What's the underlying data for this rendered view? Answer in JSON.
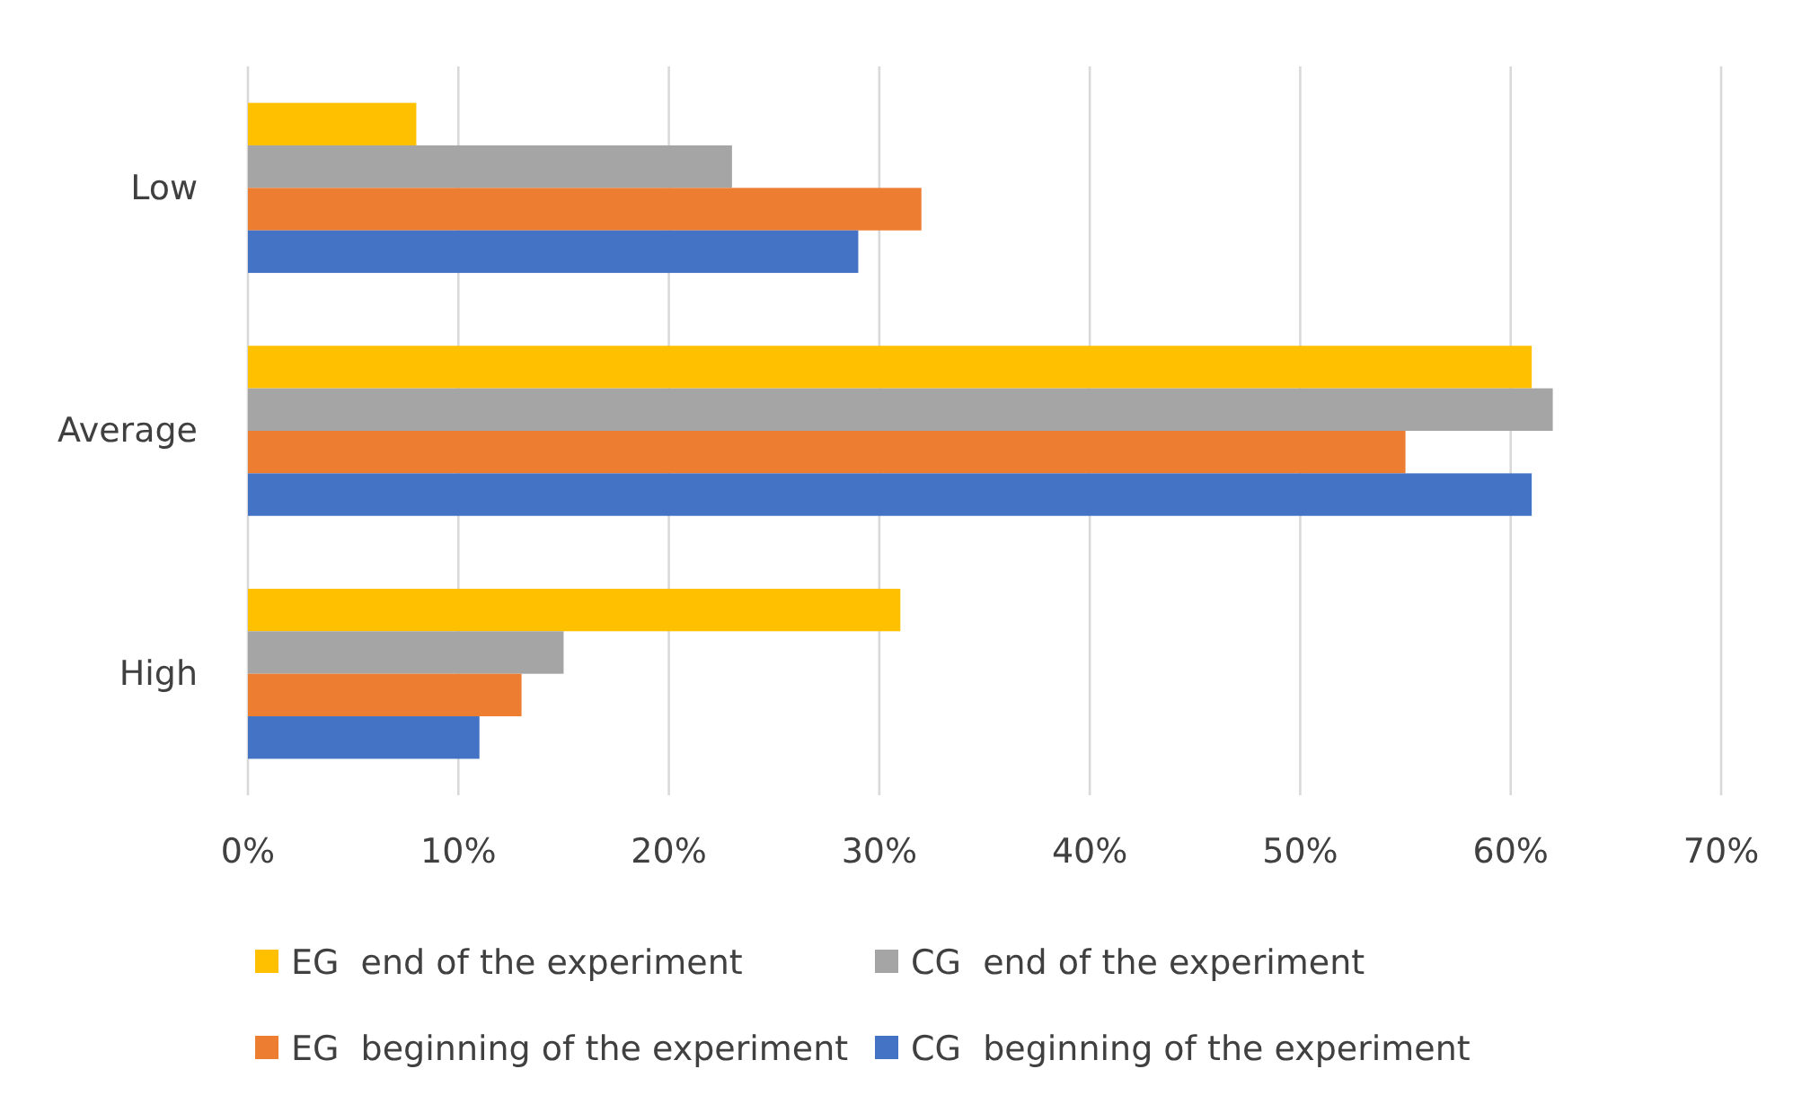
{
  "chart_data": {
    "type": "bar",
    "orientation": "horizontal",
    "categories": [
      "Low",
      "Average",
      "High"
    ],
    "series": [
      {
        "name": "EG  end of the experiment",
        "color": "#ffc000",
        "values": [
          8,
          61,
          31
        ]
      },
      {
        "name": "CG  end of the experiment",
        "color": "#a5a5a5",
        "values": [
          23,
          62,
          15
        ]
      },
      {
        "name": "EG  beginning of the experiment",
        "color": "#ed7d31",
        "values": [
          32,
          55,
          13
        ]
      },
      {
        "name": "CG  beginning of the experiment",
        "color": "#4472c4",
        "values": [
          29,
          61,
          11
        ]
      }
    ],
    "xlim": [
      0,
      70
    ],
    "xticks": [
      {
        "value": 0,
        "label": "0%"
      },
      {
        "value": 10,
        "label": "10%"
      },
      {
        "value": 20,
        "label": "20%"
      },
      {
        "value": 30,
        "label": "30%"
      },
      {
        "value": 40,
        "label": "40%"
      },
      {
        "value": 50,
        "label": "50%"
      },
      {
        "value": 60,
        "label": "60%"
      },
      {
        "value": 70,
        "label": "70%"
      }
    ],
    "grid": "x",
    "legend": "bottom"
  }
}
